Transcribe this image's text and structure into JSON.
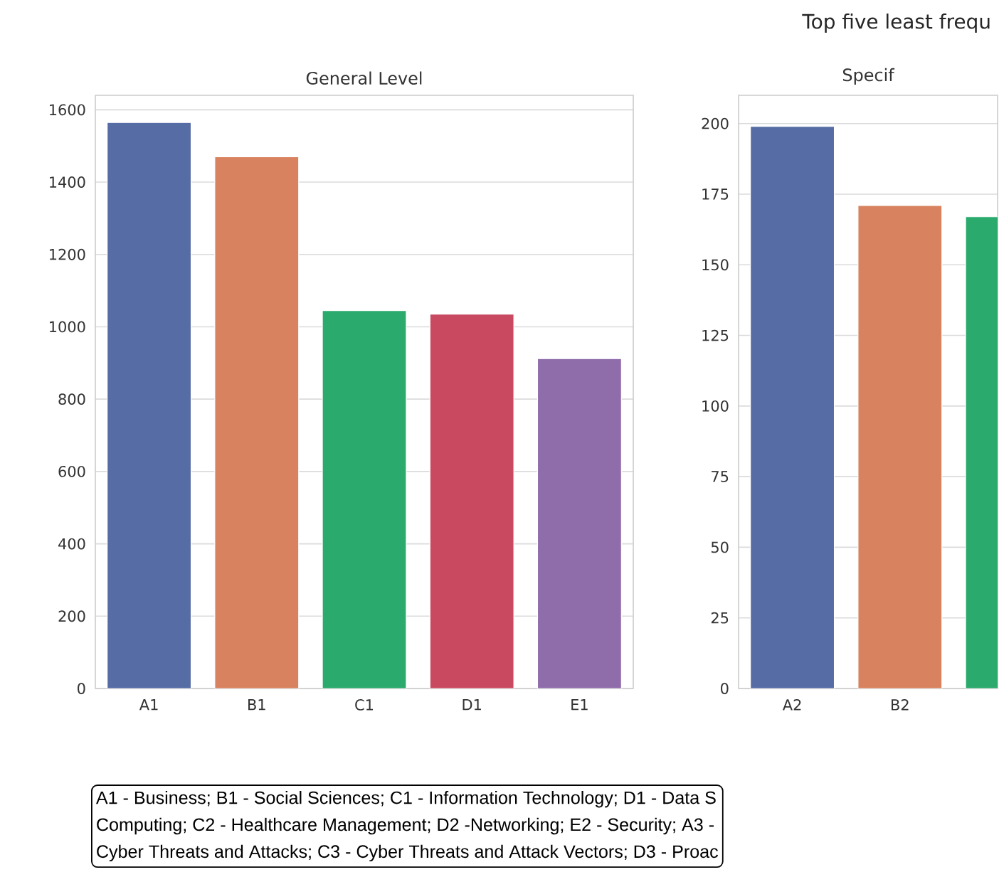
{
  "chart_data": [
    {
      "type": "bar",
      "title": "General Level",
      "categories": [
        "A1",
        "B1",
        "C1",
        "D1",
        "E1"
      ],
      "values": [
        1565,
        1470,
        1045,
        1035,
        912
      ],
      "colors": [
        "#566ca5",
        "#d9825f",
        "#2aaa6c",
        "#c94a60",
        "#8f6dab"
      ],
      "ylim": [
        0,
        1640
      ],
      "yticks": [
        0,
        200,
        400,
        600,
        800,
        1000,
        1200,
        1400,
        1600
      ],
      "grid": "y",
      "annotations": [
        "A1 - Business; B1 - Social Sciences; C1 - Information Technology; D1 - Data S",
        "Computing; C2 - Healthcare Management; D2 -Networking; E2 - Security; A3 -",
        "Cyber Threats and Attacks; C3 - Cyber Threats and Attack Vectors; D3 - Proac"
      ]
    },
    {
      "type": "bar",
      "title": "Top five least frequ",
      "subtitle": "Specif",
      "categories": [
        "A2",
        "B2",
        null
      ],
      "values": [
        199,
        171,
        167
      ],
      "colors": [
        "#566ca5",
        "#d9825f",
        "#2aaa6c"
      ],
      "ylim": [
        0,
        210
      ],
      "yticks": [
        0,
        25,
        50,
        75,
        100,
        125,
        150,
        175,
        200
      ],
      "grid": "y"
    }
  ]
}
